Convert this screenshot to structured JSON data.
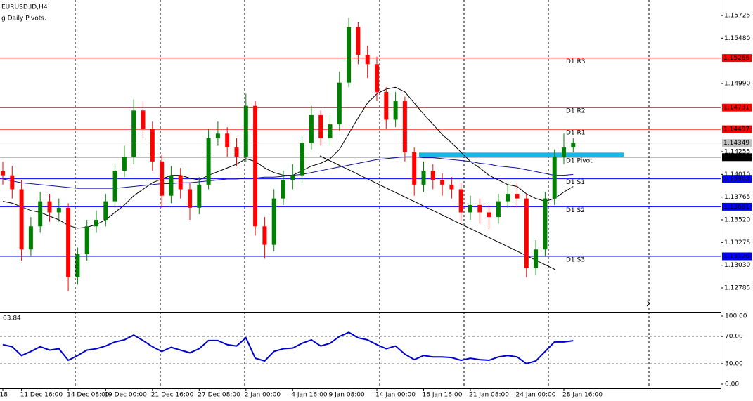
{
  "chart_data": {
    "type": "candlestick",
    "title": "EURUSD.ID,H4",
    "subtitle": "g Daily Pivots.",
    "categories": [
      "18",
      null,
      "11 Dec 16:00",
      null,
      null,
      null,
      null,
      "14 Dec 08:00",
      null,
      null,
      null,
      "19 Dec 00:00",
      null,
      null,
      null,
      null,
      "21 Dec 16:00",
      null,
      null,
      null,
      null,
      "27 Dec 08:00",
      null,
      null,
      null,
      null,
      "2 Jan 00:00",
      null,
      null,
      null,
      null,
      "4 Jan 16:00",
      null,
      null,
      null,
      "9 Jan 08:00",
      null,
      null,
      null,
      null,
      "14 Jan 00:00",
      null,
      null,
      null,
      null,
      "16 Jan 16:00",
      null,
      null,
      null,
      null,
      "21 Jan 08:00",
      null,
      null,
      null,
      null,
      "24 Jan 00:00",
      null,
      null,
      null,
      null,
      "28 Jan 16:00",
      null
    ],
    "open": [
      1.1405,
      1.14,
      1.1385,
      1.132,
      1.1345,
      1.1372,
      1.136,
      1.1365,
      1.129,
      1.1315,
      1.1345,
      1.1352,
      1.1372,
      1.1405,
      1.142,
      1.147,
      1.145,
      1.1415,
      1.1378,
      1.14,
      1.1385,
      1.1365,
      1.139,
      1.144,
      1.1445,
      1.143,
      1.142,
      1.1475,
      1.1345,
      1.1325,
      1.1375,
      1.1395,
      1.14,
      1.1435,
      1.1465,
      1.144,
      1.1455,
      1.15,
      1.156,
      1.153,
      1.152,
      1.149,
      1.146,
      1.148,
      1.1425,
      1.139,
      1.1405,
      1.1395,
      1.139,
      1.1385,
      1.136,
      1.1368,
      1.136,
      1.1355,
      1.1372,
      1.138,
      1.1375,
      1.13,
      1.132,
      1.1375,
      1.142,
      1.143
    ],
    "high": [
      1.1415,
      1.141,
      1.1395,
      1.1355,
      1.1382,
      1.138,
      1.1375,
      1.137,
      1.1322,
      1.1352,
      1.1362,
      1.138,
      1.1412,
      1.1432,
      1.1482,
      1.148,
      1.1458,
      1.1422,
      1.141,
      1.1408,
      1.1392,
      1.1398,
      1.145,
      1.1458,
      1.1452,
      1.144,
      1.1488,
      1.148,
      1.1355,
      1.1385,
      1.1405,
      1.1412,
      1.1442,
      1.1475,
      1.147,
      1.1465,
      1.1512,
      1.157,
      1.1565,
      1.154,
      1.1528,
      1.1495,
      1.149,
      1.1485,
      1.143,
      1.1415,
      1.1412,
      1.1402,
      1.1398,
      1.1392,
      1.1378,
      1.1375,
      1.1368,
      1.138,
      1.139,
      1.1392,
      1.138,
      1.133,
      1.1382,
      1.1428,
      1.1445,
      1.144
    ],
    "low": [
      1.139,
      1.1375,
      1.1308,
      1.1312,
      1.1338,
      1.135,
      1.135,
      1.1275,
      1.1282,
      1.1308,
      1.1338,
      1.1345,
      1.1365,
      1.1398,
      1.1412,
      1.144,
      1.1405,
      1.1365,
      1.137,
      1.1375,
      1.1352,
      1.1358,
      1.1385,
      1.1432,
      1.142,
      1.141,
      1.1415,
      1.1335,
      1.131,
      1.1318,
      1.1368,
      1.1385,
      1.1392,
      1.1428,
      1.1432,
      1.1432,
      1.1448,
      1.1495,
      1.152,
      1.1505,
      1.148,
      1.145,
      1.1452,
      1.1415,
      1.1378,
      1.1382,
      1.1385,
      1.1378,
      1.1375,
      1.135,
      1.1352,
      1.1348,
      1.1342,
      1.1348,
      1.1365,
      1.1365,
      1.129,
      1.1292,
      1.1312,
      1.1368,
      1.1412,
      1.1425
    ],
    "close": [
      1.14,
      1.1385,
      1.132,
      1.1345,
      1.1372,
      1.136,
      1.1365,
      1.129,
      1.1315,
      1.1345,
      1.1352,
      1.1372,
      1.1405,
      1.142,
      1.147,
      1.145,
      1.1415,
      1.1378,
      1.14,
      1.1385,
      1.1365,
      1.139,
      1.144,
      1.1445,
      1.143,
      1.142,
      1.1475,
      1.1345,
      1.1325,
      1.1375,
      1.1395,
      1.14,
      1.1435,
      1.1465,
      1.144,
      1.1455,
      1.15,
      1.156,
      1.153,
      1.152,
      1.149,
      1.146,
      1.148,
      1.1425,
      1.139,
      1.1405,
      1.1395,
      1.139,
      1.1385,
      1.136,
      1.1368,
      1.136,
      1.1355,
      1.1372,
      1.138,
      1.1375,
      1.13,
      1.132,
      1.1375,
      1.142,
      1.143,
      1.1435
    ],
    "up_color": "#008000",
    "down_color": "#ff0000",
    "ma": [
      {
        "color": "#000000",
        "values": [
          1.1372,
          1.137,
          1.1366,
          1.1362,
          1.136,
          1.1356,
          1.1352,
          1.1346,
          1.1343,
          1.1344,
          1.1347,
          1.1352,
          1.136,
          1.1368,
          1.1378,
          1.1385,
          1.1392,
          1.1396,
          1.14,
          1.14,
          1.1397,
          1.1395,
          1.14,
          1.1404,
          1.1408,
          1.1412,
          1.1418,
          1.1415,
          1.1408,
          1.1403,
          1.14,
          1.14,
          1.1405,
          1.141,
          1.1413,
          1.1418,
          1.1428,
          1.1445,
          1.1462,
          1.1478,
          1.1488,
          1.1493,
          1.1495,
          1.149,
          1.1478,
          1.1466,
          1.1455,
          1.1444,
          1.1435,
          1.1425,
          1.1415,
          1.1408,
          1.14,
          1.1395,
          1.139,
          1.1388,
          1.138,
          1.1375,
          1.1372,
          1.1375,
          1.1382,
          1.1388
        ]
      },
      {
        "color": "#1010a0",
        "values": [
          1.1396,
          1.1394,
          1.1392,
          1.1391,
          1.139,
          1.1389,
          1.1388,
          1.1387,
          1.1386,
          1.1386,
          1.1386,
          1.1386,
          1.1386,
          1.1387,
          1.1388,
          1.1389,
          1.139,
          1.1391,
          1.1391,
          1.1392,
          1.1392,
          1.1393,
          1.1394,
          1.1395,
          1.1396,
          1.1396,
          1.1397,
          1.1397,
          1.1398,
          1.1398,
          1.1399,
          1.14,
          1.1401,
          1.1403,
          1.1405,
          1.1407,
          1.1409,
          1.1411,
          1.1413,
          1.1415,
          1.1417,
          1.1418,
          1.1419,
          1.142,
          1.142,
          1.1419,
          1.1419,
          1.1418,
          1.1417,
          1.1416,
          1.1415,
          1.1413,
          1.1412,
          1.141,
          1.1409,
          1.1408,
          1.1406,
          1.1404,
          1.1402,
          1.14,
          1.14,
          1.1401
        ]
      }
    ],
    "pivots": [
      {
        "name": "D1 R3",
        "value": 1.15266,
        "color": "#ff0000"
      },
      {
        "name": "D1 R2",
        "value": 1.14731,
        "color": "#ff0000"
      },
      {
        "name": "D1 R1",
        "value": 1.14497,
        "color": "#ff0000"
      },
      {
        "name": "D1 Pivot",
        "value": 1.14196,
        "color": "#000000"
      },
      {
        "name": "D1 S1",
        "value": 1.13962,
        "color": "#0000ff"
      },
      {
        "name": "D1 S2",
        "value": 1.13661,
        "color": "#0000ff"
      },
      {
        "name": "D1 S3",
        "value": 1.13126,
        "color": "#0000ff"
      }
    ],
    "price": 1.14349,
    "zone": [
      1.14245,
      1.14195
    ],
    "ylim": [
      1.1255,
      1.15892
    ],
    "yticks": [
      1.15725,
      {
        "value": 1.1548,
        "label": "1.15480"
      },
      {
        "value": 1.1499,
        "label": "1.14990"
      },
      1.14255,
      {
        "value": 1.1401,
        "label": "1.14010"
      },
      1.13765,
      {
        "value": 1.1352,
        "label": "1.13520"
      },
      1.13275,
      {
        "value": 1.1303,
        "label": "1.13030"
      },
      1.12785
    ],
    "rsi": {
      "values": [
        58,
        55,
        42,
        48,
        55,
        50,
        52,
        35,
        42,
        50,
        52,
        56,
        62,
        65,
        72,
        64,
        55,
        48,
        54,
        50,
        46,
        52,
        64,
        64,
        58,
        56,
        68,
        38,
        34,
        48,
        52,
        53,
        60,
        65,
        56,
        60,
        70,
        76,
        68,
        65,
        58,
        52,
        56,
        44,
        36,
        42,
        40,
        40,
        39,
        35,
        38,
        36,
        35,
        40,
        42,
        40,
        30,
        34,
        48,
        62,
        62,
        63.84
      ],
      "color": "#0000cc",
      "ylim": [
        -6.2,
        106.2
      ],
      "yticks": [
        {
          "value": 100,
          "label": "100.00"
        },
        {
          "value": 70,
          "label": "70.00"
        },
        {
          "value": 30,
          "label": "30.00"
        },
        {
          "value": 0,
          "label": "0.00"
        }
      ],
      "levels": [
        70,
        30
      ]
    }
  }
}
